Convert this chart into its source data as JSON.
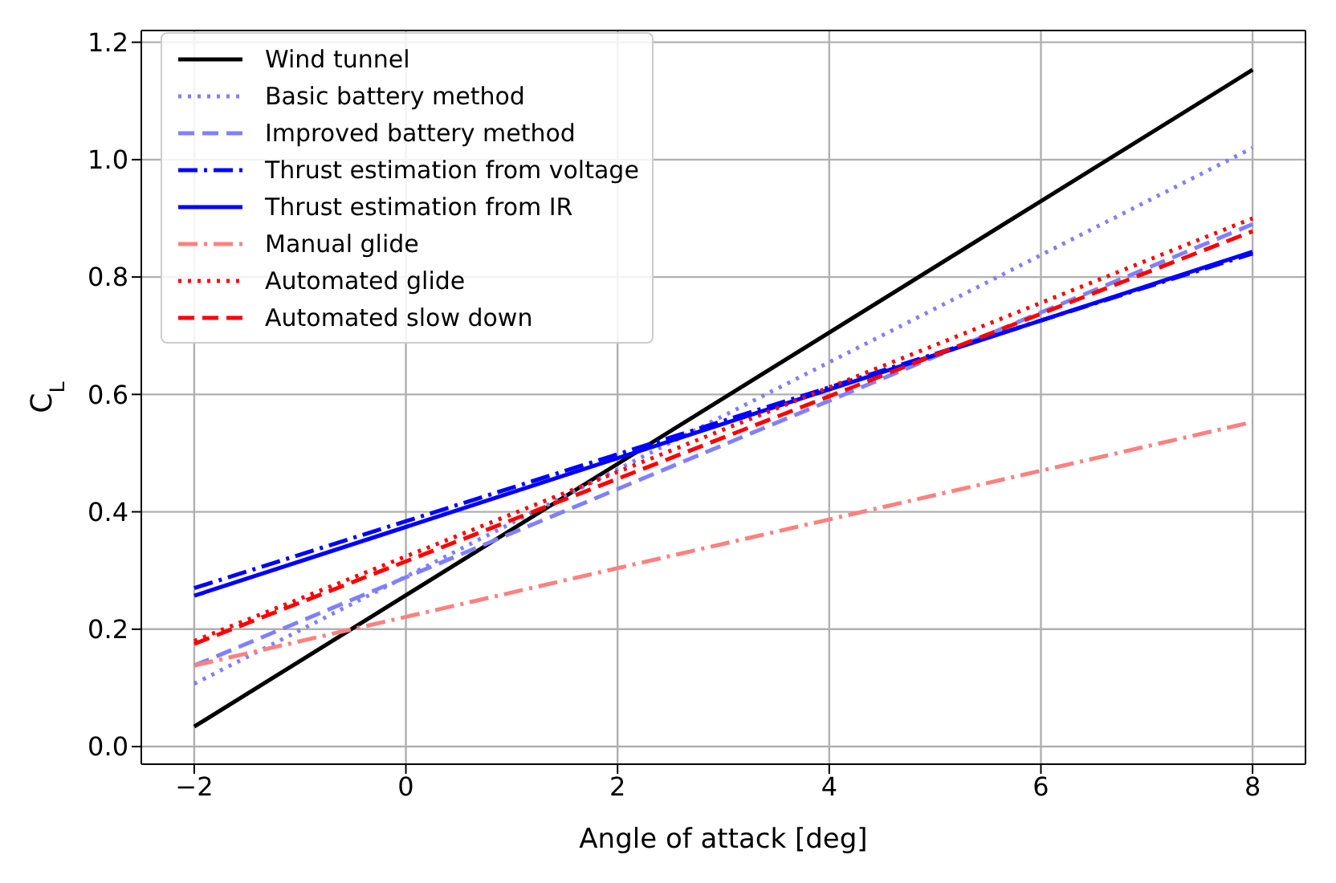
{
  "chart_data": {
    "type": "line",
    "xlabel": "Angle of attack [deg]",
    "ylabel": "C$_{L}$",
    "xlim": [
      -2.5,
      8.5
    ],
    "xticks": [
      {
        "value": -2,
        "label": "−2"
      },
      0,
      2,
      4,
      6,
      8
    ],
    "ylim": [
      -0.03,
      1.22
    ],
    "yticks": [
      {
        "value": 0,
        "label": "0.0"
      },
      0.2,
      0.4,
      0.6,
      0.8,
      {
        "value": 1,
        "label": "1.0"
      },
      1.2
    ],
    "grid": true,
    "legend": "top left",
    "marker": "none",
    "x": [
      -2,
      8
    ],
    "series": [
      {
        "name": "Wind tunnel",
        "color": "#000000",
        "line_style": "solid",
        "values": [
          0.034,
          1.153
        ]
      },
      {
        "name": "Basic battery method",
        "color": "#7f7fff",
        "line_style": "dotted",
        "values": [
          0.107,
          1.02
        ]
      },
      {
        "name": "Improved battery method",
        "color": "#8080ff",
        "line_style": "dashed",
        "values": [
          0.138,
          0.89
        ]
      },
      {
        "name": "Thrust estimation from voltage",
        "color": "#0000ff",
        "line_style": "dashdot",
        "values": [
          0.27,
          0.84
        ]
      },
      {
        "name": "Thrust estimation from IR",
        "color": "#0000ff",
        "line_style": "solid",
        "values": [
          0.257,
          0.843
        ]
      },
      {
        "name": "Manual glide",
        "color": "#ff8080",
        "line_style": "dashdot",
        "values": [
          0.138,
          0.553
        ]
      },
      {
        "name": "Automated glide",
        "color": "#ff0000",
        "line_style": "dotted",
        "values": [
          0.18,
          0.9
        ]
      },
      {
        "name": "Automated slow down",
        "color": "#ff0000",
        "line_style": "dashed",
        "values": [
          0.175,
          0.878
        ]
      }
    ]
  }
}
